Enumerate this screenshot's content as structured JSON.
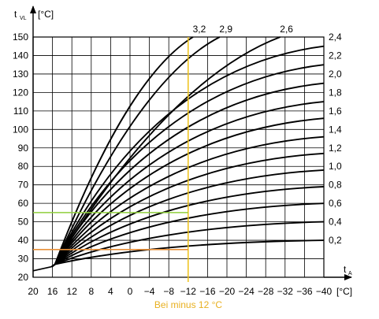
{
  "chart_data": {
    "type": "line",
    "ylabel": {
      "symbol": "t",
      "subscript": "VL",
      "unit": "[°C]"
    },
    "xlabel": {
      "symbol": "t",
      "subscript": "A",
      "unit": "[°C]"
    },
    "x_ticks": [
      20,
      16,
      12,
      8,
      4,
      0,
      -4,
      -8,
      -12,
      -16,
      -20,
      -24,
      -28,
      -32,
      -36,
      -40
    ],
    "x_tick_labels": [
      "20",
      "16",
      "12",
      "8",
      "4",
      "0",
      "−4",
      "−8",
      "−12",
      "−16",
      "−20",
      "−24",
      "−28",
      "−32",
      "−36",
      "−40"
    ],
    "xlim": [
      20,
      -40
    ],
    "y_ticks": [
      20,
      30,
      40,
      50,
      60,
      70,
      80,
      90,
      100,
      110,
      120,
      130,
      140,
      150
    ],
    "y_tick_labels": [
      "20",
      "30",
      "40",
      "50",
      "60",
      "70",
      "80",
      "90",
      "100",
      "110",
      "120",
      "130",
      "140",
      "150"
    ],
    "ylim": [
      20,
      150
    ],
    "grid": true,
    "pivot": {
      "x": 15.5,
      "y": 27
    },
    "series": [
      {
        "name": "3,2",
        "top_x": -13,
        "top_y": 150
      },
      {
        "name": "2,9",
        "top_x": -18.5,
        "top_y": 150
      },
      {
        "name": "2,6",
        "top_x": -31,
        "top_y": 150
      },
      {
        "name": "2,4",
        "end_y": 145
      },
      {
        "name": "2,2",
        "end_y": 135
      },
      {
        "name": "2,0",
        "end_y": 125
      },
      {
        "name": "1,8",
        "end_y": 115
      },
      {
        "name": "1,6",
        "end_y": 106
      },
      {
        "name": "1,4",
        "end_y": 96
      },
      {
        "name": "1,2",
        "end_y": 87
      },
      {
        "name": "1,0",
        "end_y": 78
      },
      {
        "name": "0,8",
        "end_y": 69
      },
      {
        "name": "0,6",
        "end_y": 60
      },
      {
        "name": "0,4",
        "end_y": 50
      },
      {
        "name": "0,2",
        "end_y": 40
      }
    ],
    "right_labels": [
      {
        "text": "2,4",
        "y": 150
      },
      {
        "text": "2,2",
        "y": 140
      },
      {
        "text": "2,0",
        "y": 130
      },
      {
        "text": "1,8",
        "y": 120
      },
      {
        "text": "1,6",
        "y": 110
      },
      {
        "text": "1,4",
        "y": 100
      },
      {
        "text": "1,2",
        "y": 90
      },
      {
        "text": "1,0",
        "y": 80
      },
      {
        "text": "0,8",
        "y": 70
      },
      {
        "text": "0,6",
        "y": 60
      },
      {
        "text": "0,4",
        "y": 50
      },
      {
        "text": "0,2",
        "y": 40
      }
    ],
    "reference_lines": {
      "vertical": {
        "x": -12,
        "color": "#f0c419"
      },
      "green": {
        "y": 55,
        "x_from": 20,
        "x_to": -12,
        "color": "#8fcf3c"
      },
      "orange": {
        "y": 35,
        "x_from": 20,
        "x_to": -12,
        "color": "#e8903a"
      }
    },
    "annotation": {
      "text": "Bei minus 12 °C",
      "color": "#e8b020"
    }
  }
}
